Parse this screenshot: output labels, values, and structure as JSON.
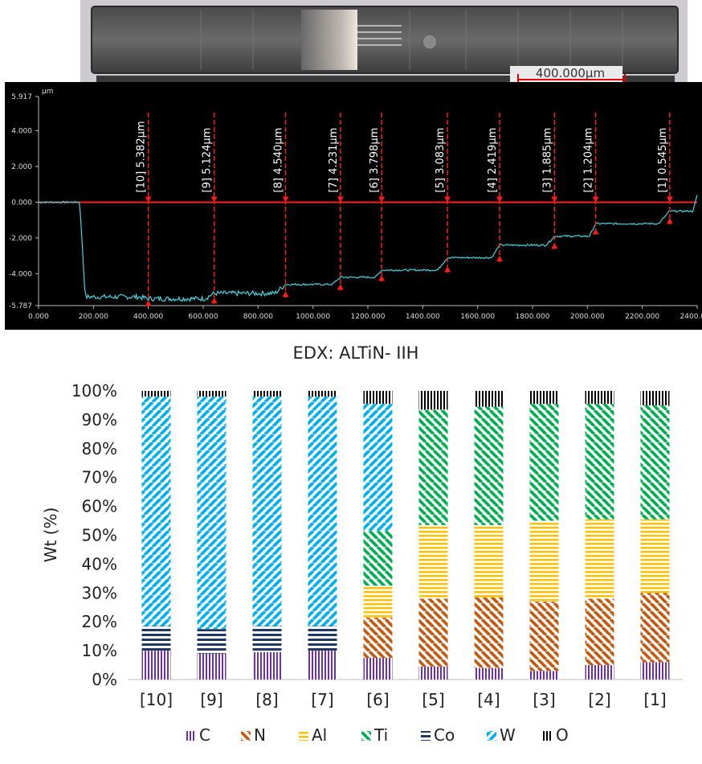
{
  "micrograph": {
    "scale_label": "400.000µm"
  },
  "profile": {
    "unit_label": "µm",
    "y_tick_labels": [
      "5.917",
      "4.000",
      "2.000",
      "0.000",
      "-2.000",
      "-4.000",
      "-5.787"
    ],
    "x_tick_labels": [
      "0.000",
      "200.000",
      "400.000",
      "600.000",
      "800.000",
      "1000.000",
      "1200.000",
      "1400.000",
      "1600.000",
      "1800.000",
      "2000.000",
      "2200.000",
      "2400.000"
    ],
    "steps": [
      {
        "label": "[10] 5.382µm",
        "x": 400
      },
      {
        "label": "[9] 5.124µm",
        "x": 640
      },
      {
        "label": "[8] 4.540µm",
        "x": 900
      },
      {
        "label": "[7] 4.231µm",
        "x": 1100
      },
      {
        "label": "[6] 3.798µm",
        "x": 1250
      },
      {
        "label": "[5] 3.083µm",
        "x": 1490
      },
      {
        "label": "[4] 2.419µm",
        "x": 1680
      },
      {
        "label": "[3] 1.885µm",
        "x": 1880
      },
      {
        "label": "[2] 1.204µm",
        "x": 2030
      },
      {
        "label": "[1] 0.545µm",
        "x": 2300
      }
    ]
  },
  "chart_data": {
    "type": "bar",
    "title": "EDX: ALTiN- IIH",
    "ylabel": "Wt (%)",
    "xlabel": "",
    "ylim": [
      0,
      100
    ],
    "y_tick_labels": [
      "0%",
      "10%",
      "20%",
      "30%",
      "40%",
      "50%",
      "60%",
      "70%",
      "80%",
      "90%",
      "100%"
    ],
    "categories": [
      "[10]",
      "[9]",
      "[8]",
      "[7]",
      "[6]",
      "[5]",
      "[4]",
      "[3]",
      "[2]",
      "[1]"
    ],
    "series": [
      {
        "name": "C",
        "color": "#7030a0",
        "values": [
          10,
          9,
          9.5,
          10,
          7.5,
          4.5,
          4,
          3,
          5,
          6
        ]
      },
      {
        "name": "N",
        "color": "#c55a11",
        "values": [
          0,
          0,
          0,
          0,
          14,
          23.5,
          24.5,
          24,
          23,
          24
        ]
      },
      {
        "name": "Al",
        "color": "#ffc000",
        "values": [
          0,
          0,
          0,
          0,
          11,
          25.5,
          25,
          28,
          27.5,
          25.5
        ]
      },
      {
        "name": "Ti",
        "color": "#00b050",
        "values": [
          0,
          0,
          0,
          0,
          19,
          40,
          41,
          40.5,
          40,
          39.5
        ]
      },
      {
        "name": "Co",
        "color": "#203864",
        "values": [
          8.5,
          8.5,
          9,
          8.5,
          0,
          0,
          0,
          0,
          0,
          0
        ]
      },
      {
        "name": "W",
        "color": "#00b0f0",
        "values": [
          79.5,
          80.5,
          79.5,
          79.5,
          44,
          0,
          0,
          0,
          0,
          0
        ]
      },
      {
        "name": "O",
        "color": "#000000",
        "values": [
          2,
          2,
          2,
          2,
          4.5,
          6.5,
          5.5,
          4.5,
          4.5,
          5
        ]
      }
    ]
  }
}
